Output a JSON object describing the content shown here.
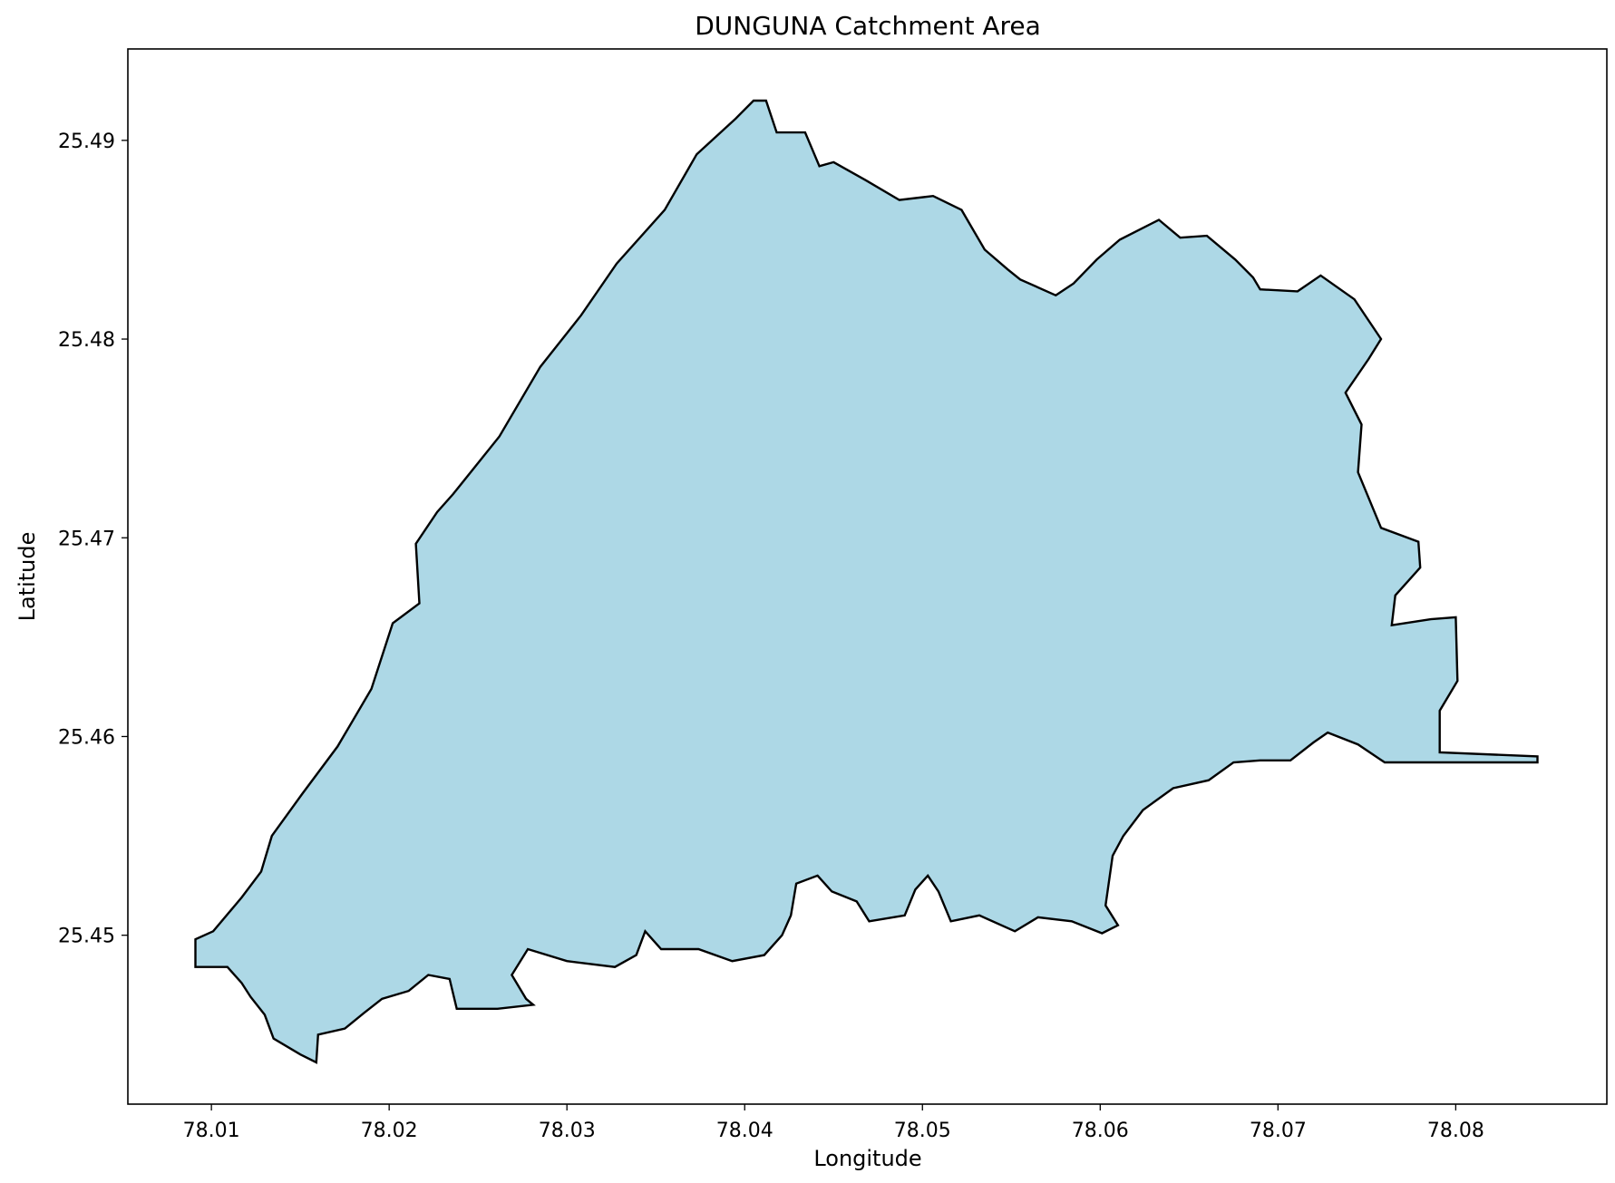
{
  "title": "DUNGUNA Catchment Area",
  "xlabel": "Longitude",
  "ylabel": "Latitude",
  "colors": {
    "fill": "#add8e6",
    "edge": "#000000",
    "background": "#ffffff"
  },
  "chart_data": {
    "type": "map",
    "title": "DUNGUNA Catchment Area",
    "xlabel": "Longitude",
    "ylabel": "Latitude",
    "xlim": [
      78.0053,
      78.0885
    ],
    "ylim": [
      25.4415,
      25.4946
    ],
    "x_ticks": [
      78.01,
      78.02,
      78.03,
      78.04,
      78.05,
      78.06,
      78.07,
      78.08
    ],
    "x_tick_labels": [
      "78.01",
      "78.02",
      "78.03",
      "78.04",
      "78.05",
      "78.06",
      "78.07",
      "78.08"
    ],
    "y_ticks": [
      25.45,
      25.46,
      25.47,
      25.48,
      25.49
    ],
    "y_tick_labels": [
      "25.45",
      "25.46",
      "25.47",
      "25.48",
      "25.49"
    ],
    "grid": false,
    "legend": "none",
    "polygon_lonlat": [
      [
        78.0091,
        25.4484
      ],
      [
        78.0091,
        25.4498
      ],
      [
        78.0101,
        25.4502
      ],
      [
        78.0117,
        25.4519
      ],
      [
        78.0128,
        25.4532
      ],
      [
        78.0134,
        25.455
      ],
      [
        78.0151,
        25.4571
      ],
      [
        78.0171,
        25.4595
      ],
      [
        78.019,
        25.4624
      ],
      [
        78.0202,
        25.4657
      ],
      [
        78.0217,
        25.4667
      ],
      [
        78.0215,
        25.4697
      ],
      [
        78.0227,
        25.4713
      ],
      [
        78.0236,
        25.4722
      ],
      [
        78.0262,
        25.4751
      ],
      [
        78.0285,
        25.4786
      ],
      [
        78.0308,
        25.4812
      ],
      [
        78.0328,
        25.4838
      ],
      [
        78.0355,
        25.4865
      ],
      [
        78.0373,
        25.4893
      ],
      [
        78.0395,
        25.4911
      ],
      [
        78.0405,
        25.492
      ],
      [
        78.0412,
        25.492
      ],
      [
        78.0418,
        25.4904
      ],
      [
        78.0434,
        25.4904
      ],
      [
        78.0442,
        25.4887
      ],
      [
        78.045,
        25.4889
      ],
      [
        78.0468,
        25.488
      ],
      [
        78.0487,
        25.487
      ],
      [
        78.0506,
        25.4872
      ],
      [
        78.0522,
        25.4865
      ],
      [
        78.0535,
        25.4845
      ],
      [
        78.0548,
        25.4835
      ],
      [
        78.0555,
        25.483
      ],
      [
        78.0575,
        25.4822
      ],
      [
        78.0585,
        25.4828
      ],
      [
        78.0598,
        25.484
      ],
      [
        78.0611,
        25.485
      ],
      [
        78.0633,
        25.486
      ],
      [
        78.0645,
        25.4851
      ],
      [
        78.066,
        25.4852
      ],
      [
        78.0676,
        25.484
      ],
      [
        78.0686,
        25.4831
      ],
      [
        78.069,
        25.4825
      ],
      [
        78.0711,
        25.4824
      ],
      [
        78.0724,
        25.4832
      ],
      [
        78.0743,
        25.482
      ],
      [
        78.0758,
        25.48
      ],
      [
        78.0751,
        25.479
      ],
      [
        78.0738,
        25.4773
      ],
      [
        78.0747,
        25.4757
      ],
      [
        78.0745,
        25.4733
      ],
      [
        78.0758,
        25.4705
      ],
      [
        78.0779,
        25.4698
      ],
      [
        78.078,
        25.4685
      ],
      [
        78.0766,
        25.4671
      ],
      [
        78.0764,
        25.4656
      ],
      [
        78.0786,
        25.4659
      ],
      [
        78.08,
        25.466
      ],
      [
        78.0801,
        25.4628
      ],
      [
        78.0791,
        25.4613
      ],
      [
        78.0791,
        25.4592
      ],
      [
        78.0846,
        25.459
      ],
      [
        78.0846,
        25.4587
      ],
      [
        78.0793,
        25.4587
      ],
      [
        78.076,
        25.4587
      ],
      [
        78.0745,
        25.4596
      ],
      [
        78.0728,
        25.4602
      ],
      [
        78.072,
        25.4597
      ],
      [
        78.0707,
        25.4588
      ],
      [
        78.069,
        25.4588
      ],
      [
        78.0675,
        25.4587
      ],
      [
        78.0661,
        25.4578
      ],
      [
        78.0641,
        25.4574
      ],
      [
        78.0624,
        25.4563
      ],
      [
        78.0613,
        25.455
      ],
      [
        78.0607,
        25.454
      ],
      [
        78.0603,
        25.4515
      ],
      [
        78.061,
        25.4505
      ],
      [
        78.0601,
        25.4501
      ],
      [
        78.0584,
        25.4507
      ],
      [
        78.0565,
        25.4509
      ],
      [
        78.0552,
        25.4502
      ],
      [
        78.0532,
        25.451
      ],
      [
        78.0516,
        25.4507
      ],
      [
        78.0509,
        25.4522
      ],
      [
        78.0503,
        25.453
      ],
      [
        78.0496,
        25.4523
      ],
      [
        78.049,
        25.451
      ],
      [
        78.047,
        25.4507
      ],
      [
        78.0463,
        25.4517
      ],
      [
        78.0449,
        25.4522
      ],
      [
        78.0441,
        25.453
      ],
      [
        78.0429,
        25.4526
      ],
      [
        78.0426,
        25.451
      ],
      [
        78.0421,
        25.45
      ],
      [
        78.0411,
        25.449
      ],
      [
        78.0393,
        25.4487
      ],
      [
        78.0374,
        25.4493
      ],
      [
        78.0353,
        25.4493
      ],
      [
        78.0344,
        25.4502
      ],
      [
        78.0339,
        25.449
      ],
      [
        78.0327,
        25.4484
      ],
      [
        78.03,
        25.4487
      ],
      [
        78.0278,
        25.4493
      ],
      [
        78.0269,
        25.448
      ],
      [
        78.0277,
        25.4468
      ],
      [
        78.0281,
        25.4465
      ],
      [
        78.0261,
        25.4463
      ],
      [
        78.0238,
        25.4463
      ],
      [
        78.0234,
        25.4478
      ],
      [
        78.0222,
        25.448
      ],
      [
        78.0211,
        25.4472
      ],
      [
        78.0196,
        25.4468
      ],
      [
        78.0186,
        25.4461
      ],
      [
        78.0175,
        25.4453
      ],
      [
        78.016,
        25.445
      ],
      [
        78.0159,
        25.4436
      ],
      [
        78.015,
        25.444
      ],
      [
        78.0135,
        25.4448
      ],
      [
        78.013,
        25.446
      ],
      [
        78.0122,
        25.4469
      ],
      [
        78.0117,
        25.4476
      ],
      [
        78.0109,
        25.4484
      ]
    ]
  }
}
